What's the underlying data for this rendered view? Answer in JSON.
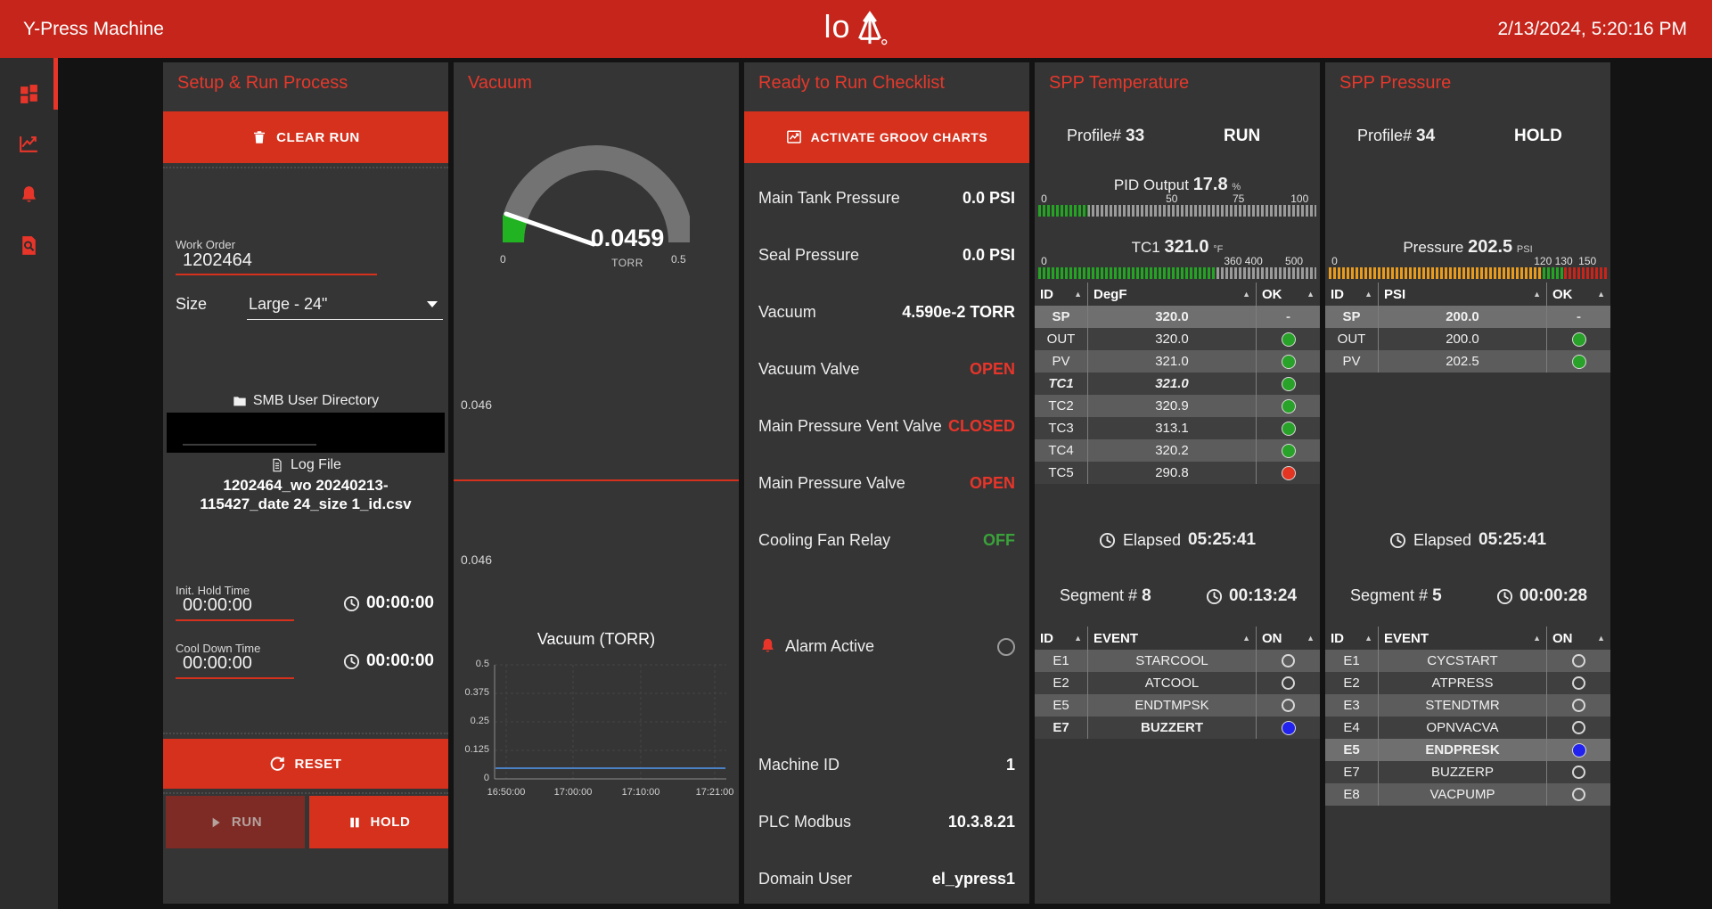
{
  "header": {
    "title": "Y-Press Machine",
    "logo_text": "lo",
    "timestamp": "2/13/2024, 5:20:16 PM"
  },
  "sidebar": {
    "items": [
      {
        "name": "dashboard"
      },
      {
        "name": "trends"
      },
      {
        "name": "alarms"
      },
      {
        "name": "search-logs"
      }
    ]
  },
  "colors": {
    "header_red": "#c5251b",
    "accent_red": "#d5311d",
    "title_red": "#e6382b",
    "green": "#28a228",
    "amber": "#e89b1d",
    "blue": "#2222ee",
    "chart_line": "#4a80c4"
  },
  "setup": {
    "title": "Setup & Run Process",
    "clear_run": "CLEAR RUN",
    "work_order": {
      "label": "Work Order",
      "value": "1202464"
    },
    "size": {
      "label": "Size",
      "value": "Large - 24\""
    },
    "smb_label": "SMB User Directory",
    "log_label": "Log File",
    "log_file": "1202464_wo 20240213-115427_date 24_size 1_id.csv",
    "init_hold": {
      "label": "Init. Hold Time",
      "value": "00:00:00",
      "timer": "00:00:00"
    },
    "cool_down": {
      "label": "Cool Down Time",
      "value": "00:00:00",
      "timer": "00:00:00"
    },
    "reset": "RESET",
    "run": "RUN",
    "hold": "HOLD"
  },
  "vacuum": {
    "title": "Vacuum",
    "gauge": {
      "value": "0.0459",
      "unit": "TORR",
      "min": "0",
      "max": "0.5",
      "pct": 9.2
    },
    "trend_label_1": "0.046",
    "trend_label_2": "0.046",
    "chart_title": "Vacuum (TORR)"
  },
  "chart_data": {
    "type": "line",
    "title": "Vacuum (TORR)",
    "x": [
      "16:50:00",
      "17:00:00",
      "17:10:00",
      "17:21:00"
    ],
    "series": [
      {
        "name": "Vacuum",
        "values": [
          0.046,
          0.046,
          0.046,
          0.046
        ]
      }
    ],
    "ylim": [
      0,
      0.5
    ],
    "yticks": [
      "0.5",
      "0.375",
      "0.25",
      "0.125",
      "0"
    ],
    "grid": true,
    "line_color": "#4a80c4"
  },
  "checklist": {
    "title": "Ready to Run Checklist",
    "activate": "ACTIVATE GROOV CHARTS",
    "rows": [
      {
        "label": "Main Tank Pressure",
        "value": "0.0 PSI",
        "color": "white"
      },
      {
        "label": "Seal Pressure",
        "value": "0.0 PSI",
        "color": "white"
      },
      {
        "label": "Vacuum",
        "value": "4.590e-2 TORR",
        "color": "white"
      },
      {
        "label": "Vacuum Valve",
        "value": "OPEN",
        "color": "red"
      },
      {
        "label": "Main Pressure Vent Valve",
        "value": "CLOSED",
        "color": "red"
      },
      {
        "label": "Main Pressure Valve",
        "value": "OPEN",
        "color": "red"
      },
      {
        "label": "Cooling Fan Relay",
        "value": "OFF",
        "color": "green"
      }
    ],
    "alarm_label": "Alarm Active",
    "info": [
      {
        "label": "Machine ID",
        "value": "1"
      },
      {
        "label": "PLC Modbus",
        "value": "10.3.8.21"
      },
      {
        "label": "Domain User",
        "value": "el_ypress1"
      }
    ]
  },
  "temp": {
    "title": "SPP Temperature",
    "profile_label": "Profile#",
    "profile_value": "33",
    "mode": "RUN",
    "pid": {
      "label": "PID Output",
      "value": "17.8",
      "unit": "%",
      "fill_pct": 17.8,
      "ticks": [
        {
          "t": "0",
          "p": 1,
          "left": true
        },
        {
          "t": "50",
          "p": 48
        },
        {
          "t": "75",
          "p": 72
        },
        {
          "t": "100",
          "p": 94
        }
      ]
    },
    "tc1": {
      "label": "TC1",
      "value": "321.0",
      "unit": "°F",
      "fill_pct": 64.2,
      "ticks": [
        {
          "t": "0",
          "p": 1,
          "left": true
        },
        {
          "t": "360",
          "p": 70
        },
        {
          "t": "400",
          "p": 77.5
        },
        {
          "t": "500",
          "p": 92
        }
      ]
    },
    "table": {
      "headers": [
        "ID",
        "DegF",
        "OK"
      ],
      "rows": [
        {
          "id": "SP",
          "val": "320.0",
          "dot": "dash",
          "style": "hi"
        },
        {
          "id": "OUT",
          "val": "320.0",
          "dot": "green"
        },
        {
          "id": "PV",
          "val": "321.0",
          "dot": "green"
        },
        {
          "id": "TC1",
          "val": "321.0",
          "dot": "green",
          "style": "bi"
        },
        {
          "id": "TC2",
          "val": "320.9",
          "dot": "green"
        },
        {
          "id": "TC3",
          "val": "313.1",
          "dot": "green"
        },
        {
          "id": "TC4",
          "val": "320.2",
          "dot": "green"
        },
        {
          "id": "TC5",
          "val": "290.8",
          "dot": "red"
        }
      ]
    },
    "elapsed_label": "Elapsed",
    "elapsed_value": "05:25:41",
    "segment_label": "Segment #",
    "segment_value": "8",
    "segment_time": "00:13:24",
    "events": {
      "headers": [
        "ID",
        "EVENT",
        "ON"
      ],
      "rows": [
        {
          "id": "E1",
          "event": "STARCOOL",
          "on": false
        },
        {
          "id": "E2",
          "event": "ATCOOL",
          "on": false
        },
        {
          "id": "E5",
          "event": "ENDTMPSK",
          "on": false
        },
        {
          "id": "E7",
          "event": "BUZZERT",
          "on": true,
          "style": "bold"
        }
      ]
    }
  },
  "pressure": {
    "title": "SPP Pressure",
    "profile_label": "Profile#",
    "profile_value": "34",
    "mode": "HOLD",
    "bar": {
      "label": "Pressure",
      "value": "202.5",
      "unit": "PSI",
      "zones": {
        "amber": [
          0,
          77
        ],
        "green": [
          77,
          84.5
        ],
        "red": [
          84.5,
          100
        ]
      },
      "ticks": [
        {
          "t": "0",
          "p": 1,
          "left": true
        },
        {
          "t": "120",
          "p": 77
        },
        {
          "t": "130",
          "p": 84.5
        },
        {
          "t": "150",
          "p": 93
        }
      ]
    },
    "table": {
      "headers": [
        "ID",
        "PSI",
        "OK"
      ],
      "rows": [
        {
          "id": "SP",
          "val": "200.0",
          "dot": "dash",
          "style": "hi"
        },
        {
          "id": "OUT",
          "val": "200.0",
          "dot": "green"
        },
        {
          "id": "PV",
          "val": "202.5",
          "dot": "green"
        }
      ]
    },
    "elapsed_label": "Elapsed",
    "elapsed_value": "05:25:41",
    "segment_label": "Segment #",
    "segment_value": "5",
    "segment_time": "00:00:28",
    "events": {
      "headers": [
        "ID",
        "EVENT",
        "ON"
      ],
      "rows": [
        {
          "id": "E1",
          "event": "CYCSTART",
          "on": false
        },
        {
          "id": "E2",
          "event": "ATPRESS",
          "on": false
        },
        {
          "id": "E3",
          "event": "STENDTMR",
          "on": false
        },
        {
          "id": "E4",
          "event": "OPNVACVA",
          "on": false
        },
        {
          "id": "E5",
          "event": "ENDPRESK",
          "on": true,
          "style": "bold hi"
        },
        {
          "id": "E7",
          "event": "BUZZERP",
          "on": false
        },
        {
          "id": "E8",
          "event": "VACPUMP",
          "on": false
        }
      ]
    }
  }
}
